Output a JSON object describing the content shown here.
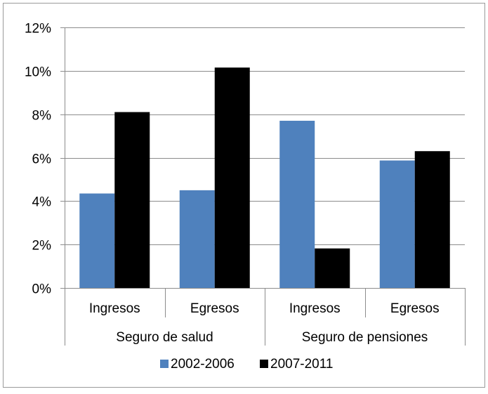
{
  "chart_data": {
    "type": "bar",
    "title": "",
    "xlabel": "",
    "ylabel": "",
    "ylim": [
      0,
      12
    ],
    "yticks": [
      0,
      2,
      4,
      6,
      8,
      10,
      12
    ],
    "ytick_labels": [
      "0%",
      "2%",
      "4%",
      "6%",
      "8%",
      "10%",
      "12%"
    ],
    "categories": [
      "Ingresos",
      "Egresos",
      "Ingresos",
      "Egresos"
    ],
    "groups": [
      {
        "label": "Seguro de salud",
        "span": 2
      },
      {
        "label": "Seguro de pensiones",
        "span": 2
      }
    ],
    "series": [
      {
        "name": "2002-2006",
        "color": "#4f81bd",
        "values": [
          4.35,
          4.5,
          7.7,
          5.87
        ]
      },
      {
        "name": "2007-2011",
        "color": "#000000",
        "values": [
          8.1,
          10.15,
          1.82,
          6.3
        ]
      }
    ],
    "grid": true,
    "legend_position": "bottom"
  }
}
